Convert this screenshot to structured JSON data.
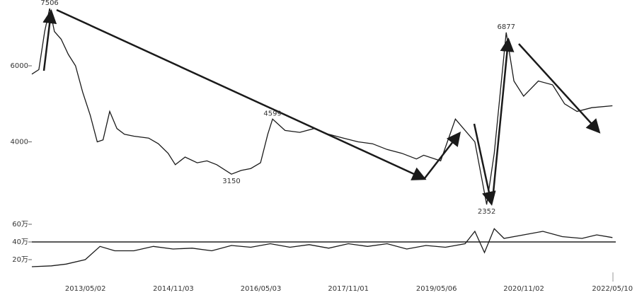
{
  "chart_data": [
    {
      "type": "line",
      "color": "#1a1a1a",
      "x": [
        "2012/06/01",
        "2012/07/15",
        "2012/08/20",
        "2012/09/20",
        "2012/10/20",
        "2012/12/01",
        "2013/01/15",
        "2013/03/01",
        "2013/04/15",
        "2013/06/01",
        "2013/07/15",
        "2013/08/20",
        "2013/10/01",
        "2013/11/15",
        "2014/01/01",
        "2014/03/01",
        "2014/06/01",
        "2014/08/01",
        "2014/10/01",
        "2014/11/15",
        "2015/01/15",
        "2015/04/01",
        "2015/06/01",
        "2015/08/01",
        "2015/11/01",
        "2016/01/01",
        "2016/03/01",
        "2016/05/01",
        "2016/06/15",
        "2016/07/15",
        "2016/10/01",
        "2017/01/01",
        "2017/04/01",
        "2017/07/01",
        "2017/10/01",
        "2018/01/01",
        "2018/04/01",
        "2018/07/01",
        "2018/10/01",
        "2019/01/01",
        "2019/02/15",
        "2019/06/01",
        "2019/09/01",
        "2020/01/01",
        "2020/03/15",
        "2020/05/01",
        "2020/07/15",
        "2020/09/01",
        "2020/11/01",
        "2021/02/01",
        "2021/05/01",
        "2021/07/15",
        "2021/10/01",
        "2022/01/01",
        "2022/05/10"
      ],
      "values": [
        5780,
        5900,
        6900,
        7506,
        6900,
        6700,
        6300,
        6000,
        5300,
        4700,
        4000,
        4050,
        4800,
        4350,
        4200,
        4150,
        4100,
        3950,
        3700,
        3400,
        3600,
        3450,
        3500,
        3400,
        3150,
        3250,
        3300,
        3450,
        4200,
        4599,
        4300,
        4250,
        4350,
        4200,
        4100,
        4000,
        3950,
        3800,
        3700,
        3550,
        3650,
        3500,
        4600,
        4000,
        2352,
        3700,
        6877,
        5600,
        5200,
        5600,
        5500,
        5000,
        4800,
        4900,
        4950
      ],
      "xlim": [
        "2012/06/01",
        "2022/05/31"
      ],
      "ylim": [
        2150,
        7730
      ],
      "yticks": [
        4000,
        6000
      ],
      "annotations": [
        {
          "x": "2012/09/20",
          "value": 7506
        },
        {
          "x": "2016/07/15",
          "value": 4599
        },
        {
          "x": "2015/11/01",
          "value": 3150
        },
        {
          "x": "2020/03/15",
          "value": 2352
        },
        {
          "x": "2020/07/15",
          "value": 6877
        }
      ]
    },
    {
      "type": "line",
      "color": "#1a1a1a",
      "x": [
        "2012/06/01",
        "2012/10/01",
        "2013/01/01",
        "2013/05/01",
        "2013/08/01",
        "2013/11/01",
        "2014/03/01",
        "2014/07/01",
        "2014/11/01",
        "2015/03/01",
        "2015/07/01",
        "2015/11/01",
        "2016/03/01",
        "2016/07/01",
        "2016/11/01",
        "2017/03/01",
        "2017/07/01",
        "2017/11/01",
        "2018/03/01",
        "2018/07/01",
        "2018/11/01",
        "2019/03/01",
        "2019/07/01",
        "2019/11/01",
        "2020/01/01",
        "2020/03/01",
        "2020/05/01",
        "2020/07/01",
        "2020/11/01",
        "2021/03/01",
        "2021/07/01",
        "2021/11/01",
        "2022/02/01",
        "2022/05/10"
      ],
      "values": [
        120000,
        130000,
        150000,
        200000,
        350000,
        300000,
        300000,
        350000,
        320000,
        330000,
        300000,
        360000,
        340000,
        380000,
        340000,
        370000,
        330000,
        380000,
        350000,
        380000,
        320000,
        360000,
        340000,
        380000,
        520000,
        280000,
        550000,
        440000,
        480000,
        520000,
        460000,
        440000,
        480000,
        450000
      ],
      "xlim": [
        "2012/06/01",
        "2022/05/31"
      ],
      "ylim": [
        0,
        800000
      ],
      "yticks": [
        {
          "value": 200000,
          "label": "20万"
        },
        {
          "value": 400000,
          "label": "40万"
        },
        {
          "value": 600000,
          "label": "60万"
        }
      ],
      "reference_line": 400000,
      "xticks": [
        "2013/05/02",
        "2014/11/03",
        "2016/05/03",
        "2017/11/01",
        "2019/05/06",
        "2020/11/02",
        "2022/05/10"
      ]
    }
  ]
}
